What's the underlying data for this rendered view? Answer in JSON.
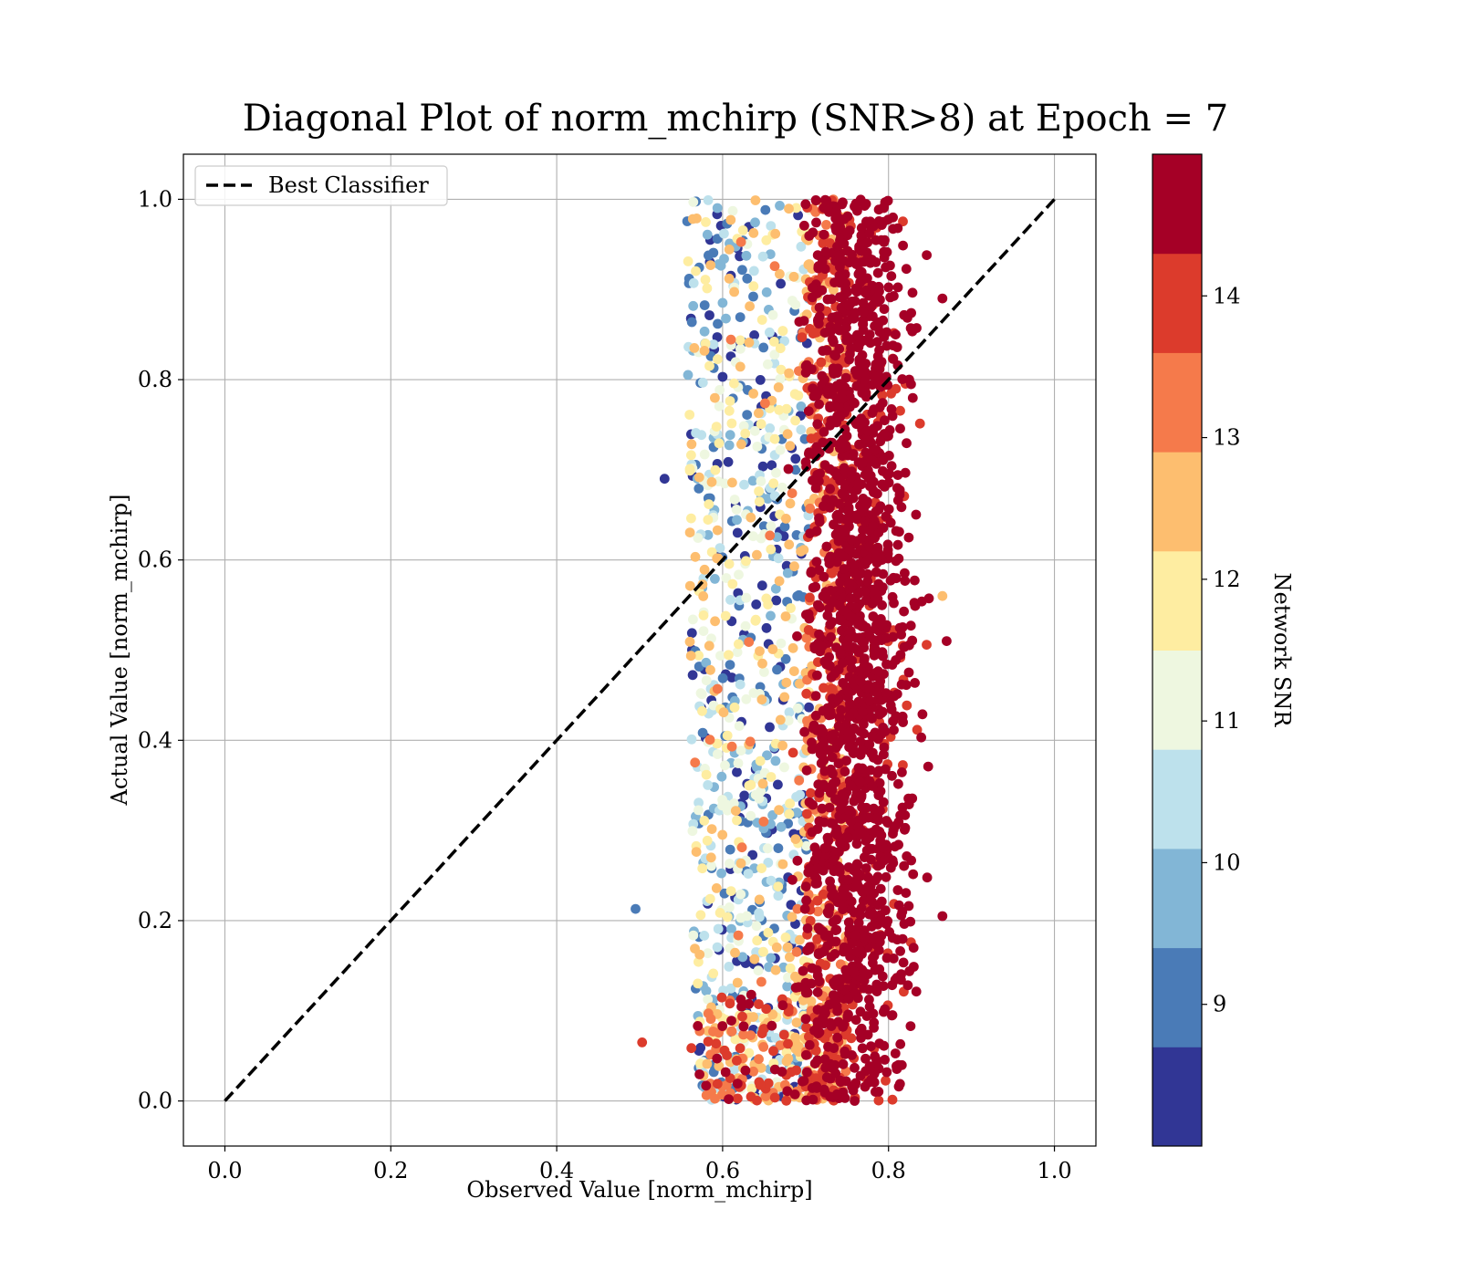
{
  "chart_data": {
    "type": "scatter",
    "title": "Diagonal Plot of norm_mchirp (SNR>8) at Epoch = 7",
    "xlabel": "Observed Value [norm_mchirp]",
    "ylabel": "Actual Value [norm_mchirp]",
    "xlim": [
      -0.05,
      1.05
    ],
    "ylim": [
      -0.05,
      1.05
    ],
    "xticks": [
      "0.0",
      "0.2",
      "0.4",
      "0.6",
      "0.8",
      "1.0"
    ],
    "yticks": [
      "0.0",
      "0.2",
      "0.4",
      "0.6",
      "0.8",
      "1.0"
    ],
    "grid": true,
    "legend": {
      "placement": "upper-left",
      "entries": [
        "Best Classifier"
      ]
    },
    "reference_line": {
      "name": "Best Classifier",
      "style": "dashed",
      "color": "#000000",
      "x": [
        0.0,
        1.0
      ],
      "y": [
        0.0,
        1.0
      ]
    },
    "colorbar": {
      "label": "Network SNR",
      "range": [
        8.0,
        15.0
      ],
      "ticks": [
        "9",
        "10",
        "11",
        "12",
        "13",
        "14"
      ],
      "colors": [
        "#313695",
        "#4a7bb7",
        "#82b6d6",
        "#bde1ec",
        "#eef7e0",
        "#feeda1",
        "#fdbe6f",
        "#f57a4b",
        "#dc3b2c",
        "#a50026"
      ]
    },
    "cloud": {
      "point_count": 3200,
      "x_range": [
        0.49,
        0.88
      ],
      "y_range": [
        0.0,
        1.0
      ],
      "description_points": [
        {
          "x": 0.495,
          "y": 0.213,
          "snr": 9.3
        },
        {
          "x": 0.503,
          "y": 0.065,
          "snr": 13.8
        },
        {
          "x": 0.585,
          "y": 0.955,
          "snr": 8.4
        },
        {
          "x": 0.53,
          "y": 0.69,
          "snr": 8.3
        },
        {
          "x": 0.865,
          "y": 0.89,
          "snr": 14.7
        },
        {
          "x": 0.87,
          "y": 0.51,
          "snr": 14.8
        },
        {
          "x": 0.865,
          "y": 0.205,
          "snr": 14.8
        },
        {
          "x": 0.865,
          "y": 0.56,
          "snr": 12.5
        }
      ]
    }
  }
}
